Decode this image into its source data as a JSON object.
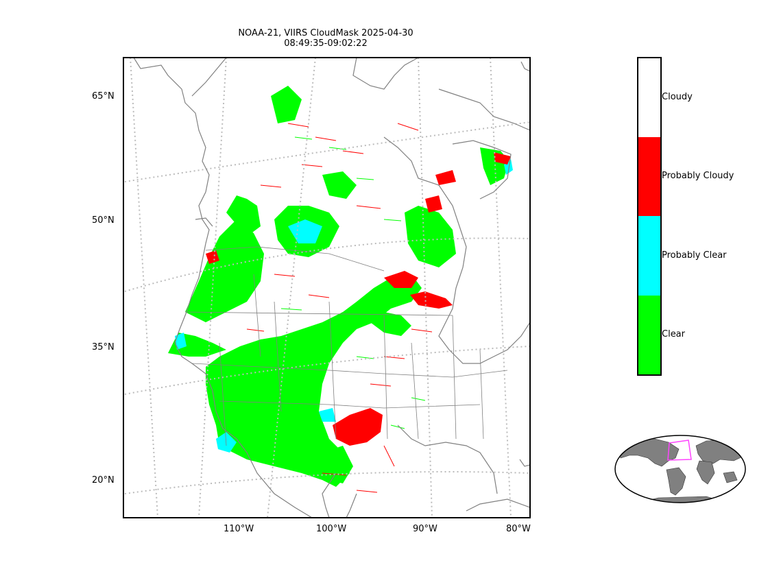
{
  "title": {
    "line1": "NOAA-21, VIIRS CloudMask 2025-04-30",
    "line2": "08:49:35-09:02:22"
  },
  "axes": {
    "lat_labels": [
      "65°N",
      "50°N",
      "35°N",
      "20°N"
    ],
    "lon_labels": [
      "110°W",
      "100°W",
      "90°W",
      "80°W"
    ]
  },
  "legend": {
    "categories": [
      {
        "label": "Cloudy",
        "color": "#ffffff"
      },
      {
        "label": "Probably Cloudy",
        "color": "#ff0000"
      },
      {
        "label": "Probably Clear",
        "color": "#00ffff"
      },
      {
        "label": "Clear",
        "color": "#00ff00"
      }
    ]
  },
  "colors": {
    "clear": "#00ff00",
    "probably_clear": "#00ffff",
    "probably_cloudy": "#ff0000",
    "cloudy": "#ffffff",
    "coastline": "#808080",
    "gridline": "#bbbbbb",
    "inset_land": "#808080",
    "inset_box": "#ff44ff"
  },
  "inset": {
    "name": "world-overview-map"
  }
}
